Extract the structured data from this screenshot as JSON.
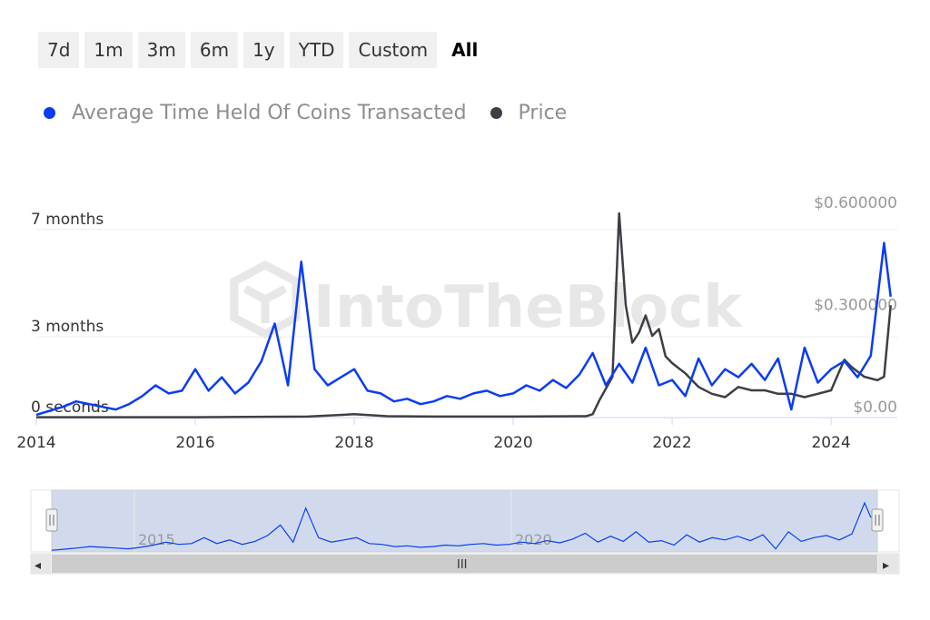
{
  "range_selector": {
    "buttons": [
      "7d",
      "1m",
      "3m",
      "6m",
      "1y",
      "YTD",
      "Custom",
      "All"
    ],
    "active": "All"
  },
  "legend": {
    "items": [
      {
        "label": "Average Time Held Of Coins Transacted",
        "color": "#0a3cf2"
      },
      {
        "label": "Price",
        "color": "#3c3f45"
      }
    ]
  },
  "watermark": "IntoTheBlock",
  "navigator": {
    "labels": [
      "2015",
      "2020"
    ],
    "scroll_grip": "III",
    "left_arrow": "◂",
    "right_arrow": "▸"
  },
  "chart_data": {
    "type": "line",
    "x_range": [
      "2014-01",
      "2024-10"
    ],
    "x_ticks": [
      "2014",
      "2016",
      "2018",
      "2020",
      "2022",
      "2024"
    ],
    "left_axis": {
      "ticks": [
        "0 seconds",
        "3 months",
        "7 months"
      ],
      "unit": "months",
      "tick_values": [
        0,
        3,
        7
      ],
      "range": [
        0,
        7.6
      ]
    },
    "right_axis": {
      "ticks": [
        "$0.00",
        "$0.300000",
        "$0.600000"
      ],
      "tick_values": [
        0,
        0.3,
        0.6
      ],
      "range": [
        0,
        0.6
      ]
    },
    "grid": true,
    "legend_position": "top-left",
    "series": [
      {
        "name": "Average Time Held Of Coins Transacted",
        "axis": "left",
        "color": "#0a3cf2",
        "points": [
          [
            "2014-01",
            0.1
          ],
          [
            "2014-03",
            0.25
          ],
          [
            "2014-05",
            0.4
          ],
          [
            "2014-07",
            0.6
          ],
          [
            "2014-09",
            0.5
          ],
          [
            "2014-11",
            0.4
          ],
          [
            "2015-01",
            0.3
          ],
          [
            "2015-03",
            0.5
          ],
          [
            "2015-05",
            0.8
          ],
          [
            "2015-07",
            1.2
          ],
          [
            "2015-09",
            0.9
          ],
          [
            "2015-11",
            1.0
          ],
          [
            "2016-01",
            1.8
          ],
          [
            "2016-03",
            1.0
          ],
          [
            "2016-05",
            1.5
          ],
          [
            "2016-07",
            0.9
          ],
          [
            "2016-09",
            1.3
          ],
          [
            "2016-11",
            2.1
          ],
          [
            "2017-01",
            3.5
          ],
          [
            "2017-03",
            1.2
          ],
          [
            "2017-05",
            5.8
          ],
          [
            "2017-07",
            1.8
          ],
          [
            "2017-09",
            1.2
          ],
          [
            "2017-11",
            1.5
          ],
          [
            "2018-01",
            1.8
          ],
          [
            "2018-03",
            1.0
          ],
          [
            "2018-05",
            0.9
          ],
          [
            "2018-07",
            0.6
          ],
          [
            "2018-09",
            0.7
          ],
          [
            "2018-11",
            0.5
          ],
          [
            "2019-01",
            0.6
          ],
          [
            "2019-03",
            0.8
          ],
          [
            "2019-05",
            0.7
          ],
          [
            "2019-07",
            0.9
          ],
          [
            "2019-09",
            1.0
          ],
          [
            "2019-11",
            0.8
          ],
          [
            "2020-01",
            0.9
          ],
          [
            "2020-03",
            1.2
          ],
          [
            "2020-05",
            1.0
          ],
          [
            "2020-07",
            1.4
          ],
          [
            "2020-09",
            1.1
          ],
          [
            "2020-11",
            1.6
          ],
          [
            "2021-01",
            2.4
          ],
          [
            "2021-03",
            1.2
          ],
          [
            "2021-05",
            2.0
          ],
          [
            "2021-07",
            1.3
          ],
          [
            "2021-09",
            2.6
          ],
          [
            "2021-11",
            1.2
          ],
          [
            "2022-01",
            1.4
          ],
          [
            "2022-03",
            0.8
          ],
          [
            "2022-05",
            2.2
          ],
          [
            "2022-07",
            1.2
          ],
          [
            "2022-09",
            1.8
          ],
          [
            "2022-11",
            1.5
          ],
          [
            "2023-01",
            2.0
          ],
          [
            "2023-03",
            1.4
          ],
          [
            "2023-05",
            2.2
          ],
          [
            "2023-07",
            0.3
          ],
          [
            "2023-09",
            2.6
          ],
          [
            "2023-11",
            1.3
          ],
          [
            "2024-01",
            1.8
          ],
          [
            "2024-03",
            2.1
          ],
          [
            "2024-05",
            1.5
          ],
          [
            "2024-07",
            2.3
          ],
          [
            "2024-09",
            6.5
          ],
          [
            "2024-10",
            4.5
          ]
        ]
      },
      {
        "name": "Price",
        "axis": "right",
        "color": "#3c3f45",
        "points": [
          [
            "2014-01",
            0.001
          ],
          [
            "2016-01",
            0.001
          ],
          [
            "2017-06",
            0.003
          ],
          [
            "2018-01",
            0.01
          ],
          [
            "2018-06",
            0.004
          ],
          [
            "2019-01",
            0.003
          ],
          [
            "2020-01",
            0.003
          ],
          [
            "2020-12",
            0.004
          ],
          [
            "2021-01",
            0.01
          ],
          [
            "2021-02",
            0.05
          ],
          [
            "2021-04",
            0.12
          ],
          [
            "2021-05",
            0.6
          ],
          [
            "2021-06",
            0.33
          ],
          [
            "2021-07",
            0.22
          ],
          [
            "2021-08",
            0.25
          ],
          [
            "2021-09",
            0.3
          ],
          [
            "2021-10",
            0.24
          ],
          [
            "2021-11",
            0.26
          ],
          [
            "2021-12",
            0.18
          ],
          [
            "2022-01",
            0.16
          ],
          [
            "2022-03",
            0.13
          ],
          [
            "2022-05",
            0.09
          ],
          [
            "2022-07",
            0.07
          ],
          [
            "2022-09",
            0.06
          ],
          [
            "2022-11",
            0.09
          ],
          [
            "2023-01",
            0.08
          ],
          [
            "2023-03",
            0.08
          ],
          [
            "2023-05",
            0.07
          ],
          [
            "2023-07",
            0.07
          ],
          [
            "2023-09",
            0.06
          ],
          [
            "2023-11",
            0.07
          ],
          [
            "2024-01",
            0.08
          ],
          [
            "2024-03",
            0.17
          ],
          [
            "2024-04",
            0.15
          ],
          [
            "2024-06",
            0.12
          ],
          [
            "2024-08",
            0.11
          ],
          [
            "2024-09",
            0.12
          ],
          [
            "2024-10",
            0.33
          ]
        ]
      }
    ]
  }
}
